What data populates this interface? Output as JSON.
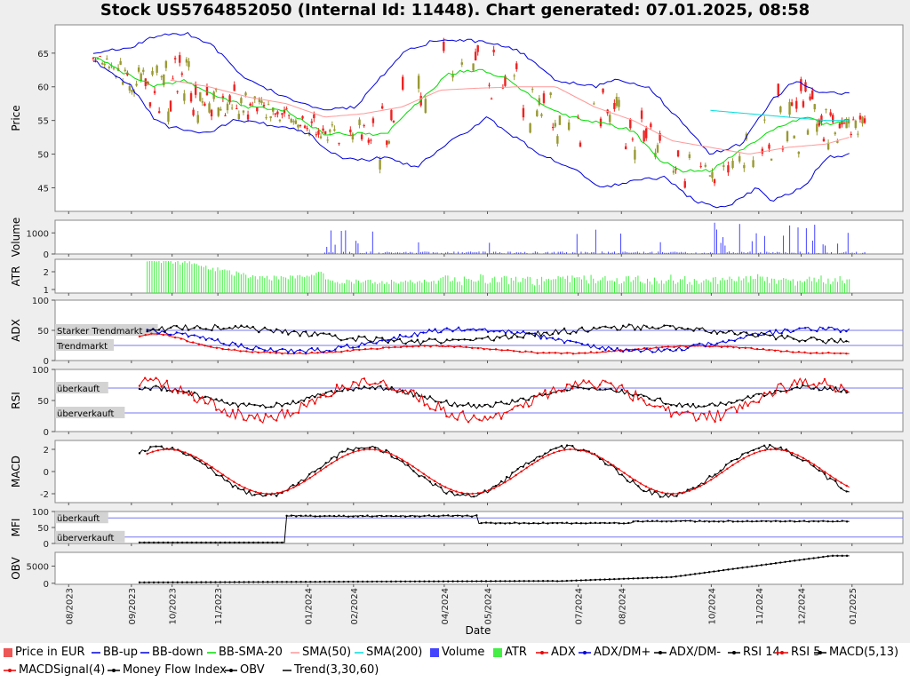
{
  "title": "Stock US5764852050 (Internal Id: 11448). Chart generated: 07.01.2025, 08:58",
  "colors": {
    "bb_up": "#0000dd",
    "bb_down": "#0000dd",
    "bb_sma20": "#00dd00",
    "sma50": "#ff9999",
    "sma200": "#00dddd",
    "volume": "#4444ff",
    "atr": "#44ee44",
    "adx": "#ee0000",
    "adx_dmplus": "#0000dd",
    "adx_dmminus": "#000000",
    "rsi14": "#000000",
    "rsi5": "#ee0000",
    "macd": "#000000",
    "macd_signal": "#ee0000",
    "mfi": "#000000",
    "obv": "#000000",
    "candle_up": "#999933",
    "candle_down": "#ee2222",
    "ref_line": "#7777ee"
  },
  "x_axis": {
    "label": "Date",
    "ticks": [
      "08/2023",
      "09/2023",
      "10/2023",
      "11/2023",
      "01/2024",
      "02/2024",
      "04/2024",
      "05/2024",
      "07/2024",
      "08/2024",
      "10/2024",
      "11/2024",
      "12/2024",
      "01/2025"
    ]
  },
  "legend": [
    {
      "label": "Price in EUR",
      "type": "box",
      "color": "#ee5555"
    },
    {
      "label": "BB-up",
      "type": "line",
      "color": "#0000dd"
    },
    {
      "label": "BB-down",
      "type": "line",
      "color": "#0000dd"
    },
    {
      "label": "BB-SMA-20",
      "type": "line",
      "color": "#00dd00"
    },
    {
      "label": "SMA(50)",
      "type": "line",
      "color": "#ff9999"
    },
    {
      "label": "SMA(200)",
      "type": "line",
      "color": "#00dddd"
    },
    {
      "label": "Volume",
      "type": "box",
      "color": "#4444ff"
    },
    {
      "label": "ATR",
      "type": "box",
      "color": "#44ee44"
    },
    {
      "label": "ADX",
      "type": "marker",
      "color": "#ee0000"
    },
    {
      "label": "ADX/DM+",
      "type": "marker",
      "color": "#0000dd"
    },
    {
      "label": "ADX/DM-",
      "type": "marker",
      "color": "#000000"
    },
    {
      "label": "RSI 14",
      "type": "marker",
      "color": "#000000"
    },
    {
      "label": "RSI 5",
      "type": "marker",
      "color": "#ee0000"
    },
    {
      "label": "MACD(5,13)",
      "type": "marker",
      "color": "#000000"
    },
    {
      "label": "MACDSignal(4)",
      "type": "marker",
      "color": "#ee0000"
    },
    {
      "label": "Money Flow Index",
      "type": "marker",
      "color": "#000000"
    },
    {
      "label": "OBV",
      "type": "marker",
      "color": "#000000"
    },
    {
      "label": "Trend(3,30,60)",
      "type": "line",
      "color": "#000000"
    }
  ],
  "chart_data": [
    {
      "type": "candlestick",
      "panel": "price",
      "ylabel": "Price",
      "yticks": [
        45,
        50,
        55,
        60,
        65
      ],
      "ylim": [
        41.5,
        69.2
      ],
      "series": [
        {
          "name": "BB-up",
          "points": [
            [
              0.0,
              65.0
            ],
            [
              0.05,
              66.0
            ],
            [
              0.08,
              67.5
            ],
            [
              0.12,
              68.0
            ],
            [
              0.15,
              66.5
            ],
            [
              0.2,
              61.0
            ],
            [
              0.25,
              58.5
            ],
            [
              0.3,
              56.5
            ],
            [
              0.34,
              57.0
            ],
            [
              0.37,
              61.0
            ],
            [
              0.4,
              65.0
            ],
            [
              0.44,
              66.8
            ],
            [
              0.48,
              67.0
            ],
            [
              0.52,
              66.5
            ],
            [
              0.55,
              65.5
            ],
            [
              0.6,
              61.0
            ],
            [
              0.65,
              60.0
            ],
            [
              0.68,
              61.0
            ],
            [
              0.72,
              60.0
            ],
            [
              0.76,
              55.0
            ],
            [
              0.8,
              50.0
            ],
            [
              0.84,
              51.5
            ],
            [
              0.88,
              58.0
            ],
            [
              0.91,
              61.0
            ],
            [
              0.94,
              59.0
            ],
            [
              0.98,
              59.0
            ]
          ]
        },
        {
          "name": "BB-down",
          "points": [
            [
              0.0,
              64.0
            ],
            [
              0.05,
              60.0
            ],
            [
              0.08,
              55.0
            ],
            [
              0.1,
              54.0
            ],
            [
              0.15,
              53.0
            ],
            [
              0.18,
              55.0
            ],
            [
              0.22,
              54.5
            ],
            [
              0.25,
              54.0
            ],
            [
              0.28,
              53.0
            ],
            [
              0.31,
              50.0
            ],
            [
              0.34,
              49.0
            ],
            [
              0.38,
              49.5
            ],
            [
              0.42,
              48.0
            ],
            [
              0.45,
              51.0
            ],
            [
              0.48,
              53.0
            ],
            [
              0.51,
              55.5
            ],
            [
              0.54,
              53.0
            ],
            [
              0.58,
              50.0
            ],
            [
              0.62,
              48.0
            ],
            [
              0.66,
              45.0
            ],
            [
              0.7,
              46.0
            ],
            [
              0.74,
              46.5
            ],
            [
              0.78,
              43.0
            ],
            [
              0.82,
              42.0
            ],
            [
              0.86,
              45.0
            ],
            [
              0.88,
              43.0
            ],
            [
              0.92,
              45.0
            ],
            [
              0.95,
              49.5
            ],
            [
              0.98,
              50.0
            ]
          ]
        },
        {
          "name": "BB-SMA-20",
          "points": [
            [
              0.0,
              64.5
            ],
            [
              0.05,
              61.5
            ],
            [
              0.08,
              60.0
            ],
            [
              0.12,
              61.0
            ],
            [
              0.15,
              59.0
            ],
            [
              0.2,
              57.0
            ],
            [
              0.25,
              56.5
            ],
            [
              0.3,
              53.0
            ],
            [
              0.35,
              53.0
            ],
            [
              0.38,
              53.0
            ],
            [
              0.42,
              57.5
            ],
            [
              0.46,
              62.0
            ],
            [
              0.5,
              62.5
            ],
            [
              0.54,
              61.0
            ],
            [
              0.58,
              57.5
            ],
            [
              0.62,
              55.5
            ],
            [
              0.66,
              54.5
            ],
            [
              0.7,
              53.5
            ],
            [
              0.73,
              49.5
            ],
            [
              0.76,
              47.5
            ],
            [
              0.8,
              47.5
            ],
            [
              0.84,
              50.5
            ],
            [
              0.88,
              53.5
            ],
            [
              0.92,
              55.5
            ],
            [
              0.95,
              54.5
            ],
            [
              0.98,
              55.0
            ]
          ]
        },
        {
          "name": "SMA(50)",
          "points": [
            [
              0.1,
              61.0
            ],
            [
              0.15,
              60.0
            ],
            [
              0.2,
              58.5
            ],
            [
              0.25,
              57.5
            ],
            [
              0.3,
              55.5
            ],
            [
              0.35,
              56.0
            ],
            [
              0.4,
              57.0
            ],
            [
              0.45,
              59.5
            ],
            [
              0.5,
              59.8
            ],
            [
              0.55,
              60.0
            ],
            [
              0.6,
              60.0
            ],
            [
              0.65,
              57.0
            ],
            [
              0.7,
              55.0
            ],
            [
              0.75,
              52.0
            ],
            [
              0.8,
              51.0
            ],
            [
              0.85,
              50.0
            ],
            [
              0.9,
              51.0
            ],
            [
              0.95,
              51.5
            ],
            [
              0.98,
              52.5
            ]
          ]
        },
        {
          "name": "SMA(200)",
          "points": [
            [
              0.8,
              56.5
            ],
            [
              0.85,
              56.0
            ],
            [
              0.9,
              55.5
            ],
            [
              0.95,
              55.0
            ],
            [
              0.98,
              55.0
            ]
          ]
        }
      ]
    },
    {
      "type": "bar",
      "panel": "volume",
      "ylabel": "Volume",
      "yticks": [
        0,
        1000
      ],
      "ylim": [
        0,
        1600
      ]
    },
    {
      "type": "bar",
      "panel": "atr",
      "ylabel": "ATR",
      "yticks": [
        1,
        2
      ],
      "ylim": [
        0.8,
        2.7
      ]
    },
    {
      "type": "line",
      "panel": "adx",
      "ylabel": "ADX",
      "yticks": [
        0,
        50,
        100
      ],
      "ylim": [
        0,
        100
      ],
      "reference_lines": [
        {
          "value": 50,
          "label": "Starker Trendmarkt"
        },
        {
          "value": 25,
          "label": "Trendmarkt"
        }
      ]
    },
    {
      "type": "line",
      "panel": "rsi",
      "ylabel": "RSI",
      "yticks": [
        0,
        50,
        100
      ],
      "ylim": [
        0,
        100
      ],
      "reference_lines": [
        {
          "value": 70,
          "label": "überkauft"
        },
        {
          "value": 30,
          "label": "überverkauft"
        }
      ]
    },
    {
      "type": "line",
      "panel": "macd",
      "ylabel": "MACD",
      "yticks": [
        -2,
        0,
        2
      ],
      "ylim": [
        -2.8,
        2.8
      ]
    },
    {
      "type": "line",
      "panel": "mfi",
      "ylabel": "MFI",
      "yticks": [
        0,
        50,
        100
      ],
      "ylim": [
        0,
        100
      ],
      "reference_lines": [
        {
          "value": 80,
          "label": "überkauft"
        },
        {
          "value": 20,
          "label": "überverkauft"
        }
      ]
    },
    {
      "type": "line",
      "panel": "obv",
      "ylabel": "OBV",
      "yticks": [
        0,
        5000
      ],
      "ylim": [
        -300,
        9000
      ]
    }
  ]
}
